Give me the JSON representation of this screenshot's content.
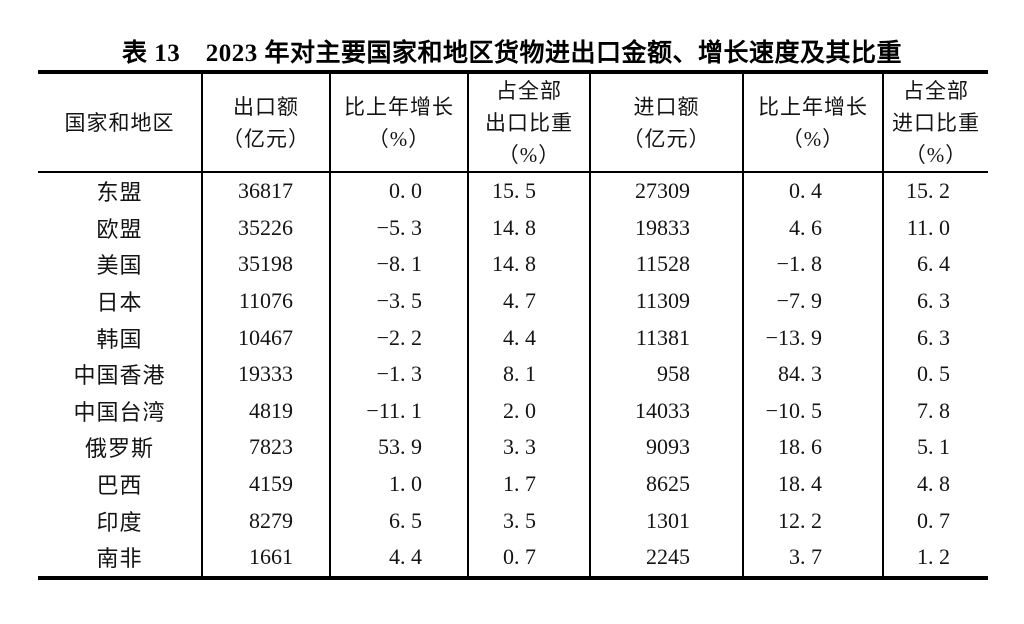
{
  "page": {
    "background_color": "#ffffff",
    "text_color": "#141414",
    "border_color": "#000000"
  },
  "title": "表 13　2023 年对主要国家和地区货物进出口金额、增长速度及其比重",
  "table": {
    "columns": [
      {
        "key": "region",
        "label_lines": [
          "国家和地区"
        ]
      },
      {
        "key": "export_value",
        "label_lines": [
          "出口额",
          "（亿元）"
        ]
      },
      {
        "key": "export_growth",
        "label_lines": [
          "比上年增长",
          "（%）"
        ]
      },
      {
        "key": "export_share",
        "label_lines": [
          "占全部",
          "出口比重",
          "（%）"
        ]
      },
      {
        "key": "import_value",
        "label_lines": [
          "进口额",
          "（亿元）"
        ]
      },
      {
        "key": "import_growth",
        "label_lines": [
          "比上年增长",
          "（%）"
        ]
      },
      {
        "key": "import_share",
        "label_lines": [
          "占全部",
          "进口比重",
          "（%）"
        ]
      }
    ],
    "rows": [
      {
        "region": "东盟",
        "export_value": "36817",
        "export_growth": "0. 0",
        "export_share": "15. 5",
        "import_value": "27309",
        "import_growth": "0. 4",
        "import_share": "15. 2"
      },
      {
        "region": "欧盟",
        "export_value": "35226",
        "export_growth": "−5. 3",
        "export_share": "14. 8",
        "import_value": "19833",
        "import_growth": "4. 6",
        "import_share": "11. 0"
      },
      {
        "region": "美国",
        "export_value": "35198",
        "export_growth": "−8. 1",
        "export_share": "14. 8",
        "import_value": "11528",
        "import_growth": "−1. 8",
        "import_share": "6. 4"
      },
      {
        "region": "日本",
        "export_value": "11076",
        "export_growth": "−3. 5",
        "export_share": "4. 7",
        "import_value": "11309",
        "import_growth": "−7. 9",
        "import_share": "6. 3"
      },
      {
        "region": "韩国",
        "export_value": "10467",
        "export_growth": "−2. 2",
        "export_share": "4. 4",
        "import_value": "11381",
        "import_growth": "−13. 9",
        "import_share": "6. 3"
      },
      {
        "region": "中国香港",
        "export_value": "19333",
        "export_growth": "−1. 3",
        "export_share": "8. 1",
        "import_value": "958",
        "import_growth": "84. 3",
        "import_share": "0. 5"
      },
      {
        "region": "中国台湾",
        "export_value": "4819",
        "export_growth": "−11. 1",
        "export_share": "2. 0",
        "import_value": "14033",
        "import_growth": "−10. 5",
        "import_share": "7. 8"
      },
      {
        "region": "俄罗斯",
        "export_value": "7823",
        "export_growth": "53. 9",
        "export_share": "3. 3",
        "import_value": "9093",
        "import_growth": "18. 6",
        "import_share": "5. 1"
      },
      {
        "region": "巴西",
        "export_value": "4159",
        "export_growth": "1. 0",
        "export_share": "1. 7",
        "import_value": "8625",
        "import_growth": "18. 4",
        "import_share": "4. 8"
      },
      {
        "region": "印度",
        "export_value": "8279",
        "export_growth": "6. 5",
        "export_share": "3. 5",
        "import_value": "1301",
        "import_growth": "12. 2",
        "import_share": "0. 7"
      },
      {
        "region": "南非",
        "export_value": "1661",
        "export_growth": "4. 4",
        "export_share": "0. 7",
        "import_value": "2245",
        "import_growth": "3. 7",
        "import_share": "1. 2"
      }
    ]
  }
}
